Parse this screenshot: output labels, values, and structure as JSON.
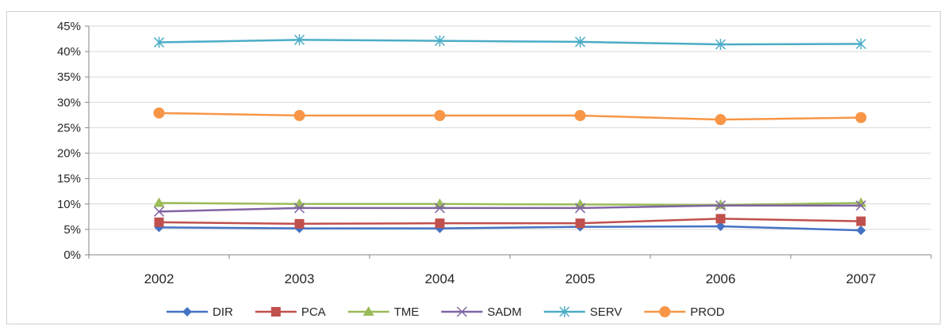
{
  "chart_data": {
    "type": "line",
    "categories": [
      "2002",
      "2003",
      "2004",
      "2005",
      "2006",
      "2007"
    ],
    "ylim": [
      0,
      0.45
    ],
    "yticks": [
      "0%",
      "5%",
      "10%",
      "15%",
      "20%",
      "25%",
      "30%",
      "35%",
      "40%",
      "45%"
    ],
    "grid": true,
    "legend_position": "bottom",
    "series": [
      {
        "name": "DIR",
        "color": "#4472c4",
        "marker": "diamond",
        "values": [
          0.054,
          0.052,
          0.052,
          0.055,
          0.056,
          0.048
        ]
      },
      {
        "name": "PCA",
        "color": "#c0504d",
        "marker": "square",
        "values": [
          0.064,
          0.061,
          0.062,
          0.062,
          0.071,
          0.066
        ]
      },
      {
        "name": "TME",
        "color": "#9bbb59",
        "marker": "triangle",
        "values": [
          0.102,
          0.1,
          0.1,
          0.099,
          0.098,
          0.102
        ]
      },
      {
        "name": "SADM",
        "color": "#8064a2",
        "marker": "x",
        "values": [
          0.085,
          0.092,
          0.092,
          0.092,
          0.097,
          0.097
        ]
      },
      {
        "name": "SERV",
        "color": "#4bacc6",
        "marker": "star",
        "values": [
          0.418,
          0.423,
          0.421,
          0.419,
          0.414,
          0.415
        ]
      },
      {
        "name": "PROD",
        "color": "#f79646",
        "marker": "circle",
        "values": [
          0.279,
          0.274,
          0.274,
          0.274,
          0.266,
          0.27
        ]
      }
    ]
  }
}
